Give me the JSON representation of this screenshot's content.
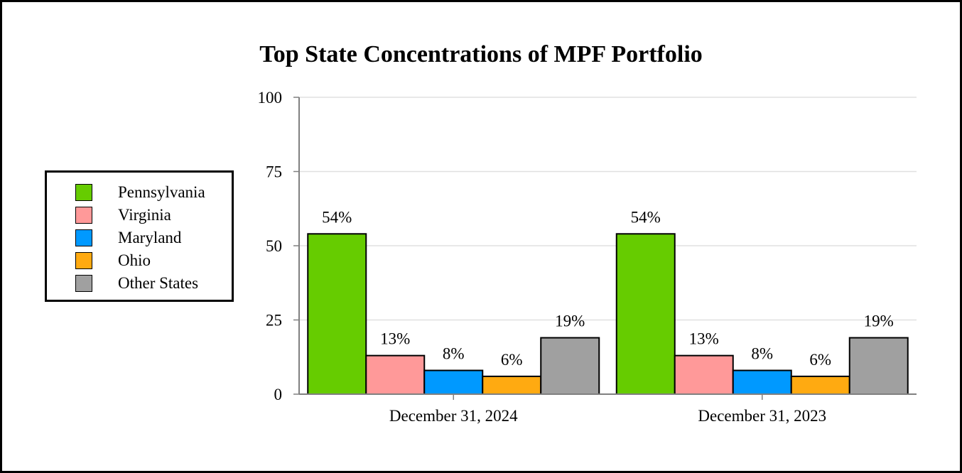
{
  "chart_data": {
    "type": "bar",
    "title": "Top State Concentrations of MPF Portfolio",
    "categories": [
      "December 31, 2024",
      "December 31, 2023"
    ],
    "series": [
      {
        "name": "Pennsylvania",
        "values": [
          54,
          54
        ],
        "labels": [
          "54%",
          "54%"
        ],
        "color": "#66cc00"
      },
      {
        "name": "Virginia",
        "values": [
          13,
          13
        ],
        "labels": [
          "13%",
          "13%"
        ],
        "color": "#ff9999"
      },
      {
        "name": "Maryland",
        "values": [
          8,
          8
        ],
        "labels": [
          "8%",
          "8%"
        ],
        "color": "#0099ff"
      },
      {
        "name": "Ohio",
        "values": [
          6,
          6
        ],
        "labels": [
          "6%",
          "6%"
        ],
        "color": "#ffaa11"
      },
      {
        "name": "Other States",
        "values": [
          19,
          19
        ],
        "labels": [
          "19%",
          "19%"
        ],
        "color": "#a0a0a0"
      }
    ],
    "ylim": [
      0,
      100
    ],
    "yticks": [
      0,
      25,
      50,
      75,
      100
    ],
    "ytick_labels": [
      "0",
      "25",
      "50",
      "75",
      "100"
    ],
    "grid": true,
    "legend_position": "left"
  }
}
